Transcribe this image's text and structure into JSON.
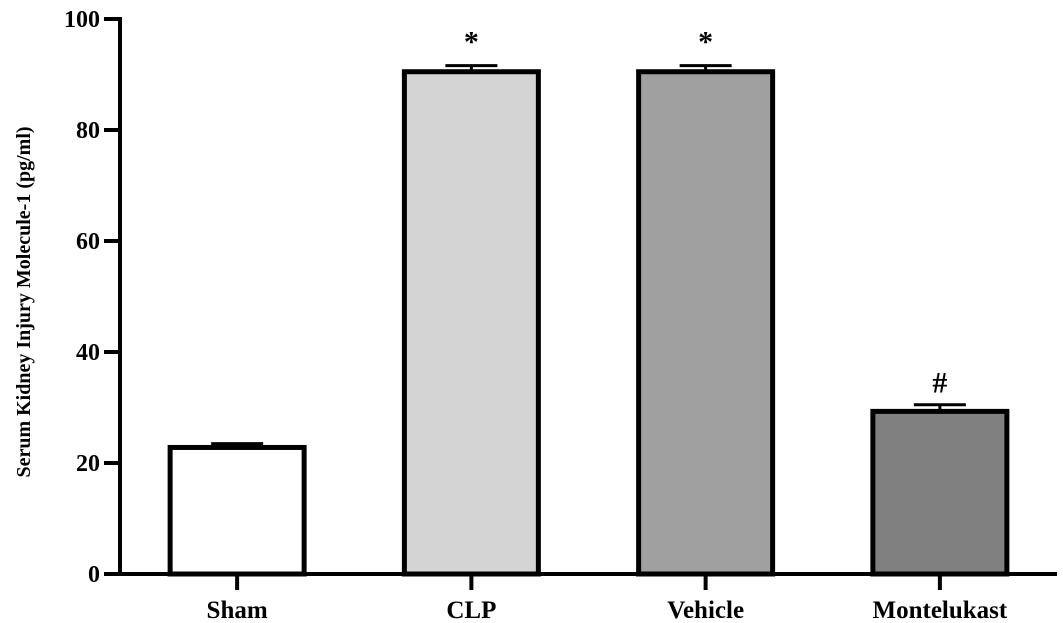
{
  "chart_data": {
    "type": "bar",
    "title": "",
    "xlabel": "",
    "ylabel": "Serum Kidney Injury Molecule-1 (pg/ml)",
    "ylim": [
      0,
      100
    ],
    "yticks": [
      0,
      20,
      40,
      60,
      80,
      100
    ],
    "ytick_labels": [
      "0",
      "20",
      "40",
      "60",
      "80",
      "100"
    ],
    "grid": false,
    "legend": "none",
    "categories": [
      "Sham",
      "CLP",
      "Vehicle",
      "Montelukast"
    ],
    "values": [
      22.8,
      90.5,
      90.5,
      29.3
    ],
    "errors": [
      0.7,
      1.1,
      1.1,
      1.2
    ],
    "annotations": [
      "",
      "*",
      "*",
      "#"
    ],
    "colors": [
      "#ffffff",
      "#d4d4d4",
      "#a0a0a0",
      "#808080"
    ],
    "edge_color": "#000000"
  }
}
